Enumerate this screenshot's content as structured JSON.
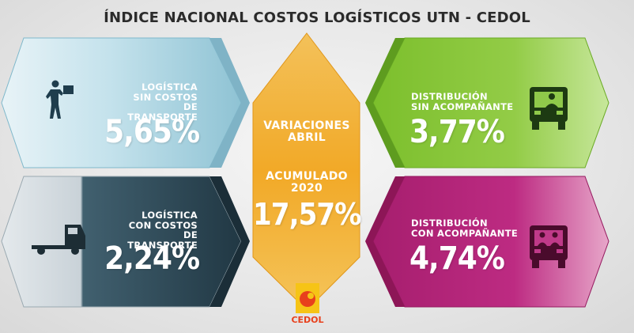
{
  "header": {
    "title": "ÍNDICE NACIONAL COSTOS LOGÍSTICOS UTN - CEDOL"
  },
  "tiles": {
    "top_left": {
      "label_1": "LOGÍSTICA",
      "label_2": "SIN COSTOS DE",
      "label_3": "TRANSPORTE",
      "value": "5,65%",
      "icon": "worker-carrying-box-icon"
    },
    "bottom_left": {
      "label_1": "LOGÍSTICA",
      "label_2": "CON COSTOS DE",
      "label_3": "TRANSPORTE",
      "value": "2,24%",
      "icon": "truck-icon"
    },
    "top_right": {
      "label_1": "DISTRIBUCIÓN",
      "label_2": "SIN ACOMPAÑANTE",
      "value": "3,77%",
      "icon": "truck-front-one-driver-icon"
    },
    "bottom_right": {
      "label_1": "DISTRIBUCIÓN",
      "label_2": "CON ACOMPAÑANTE",
      "value": "4,74%",
      "icon": "truck-front-two-people-icon"
    },
    "center": {
      "label_1": "VARIACIONES",
      "label_2": "ABRIL",
      "label_3": "ACUMULADO",
      "label_4": "2020",
      "value": "17,57%"
    }
  },
  "logo": {
    "text": "CEDOL"
  },
  "colors": {
    "top_left": "#a9d3e0",
    "bottom_left": "#35505e",
    "top_right": "#8cc63f",
    "bottom_right": "#b7257c",
    "center": "#f0a020",
    "title": "#2b2b2b",
    "logo": "#e8401c"
  }
}
